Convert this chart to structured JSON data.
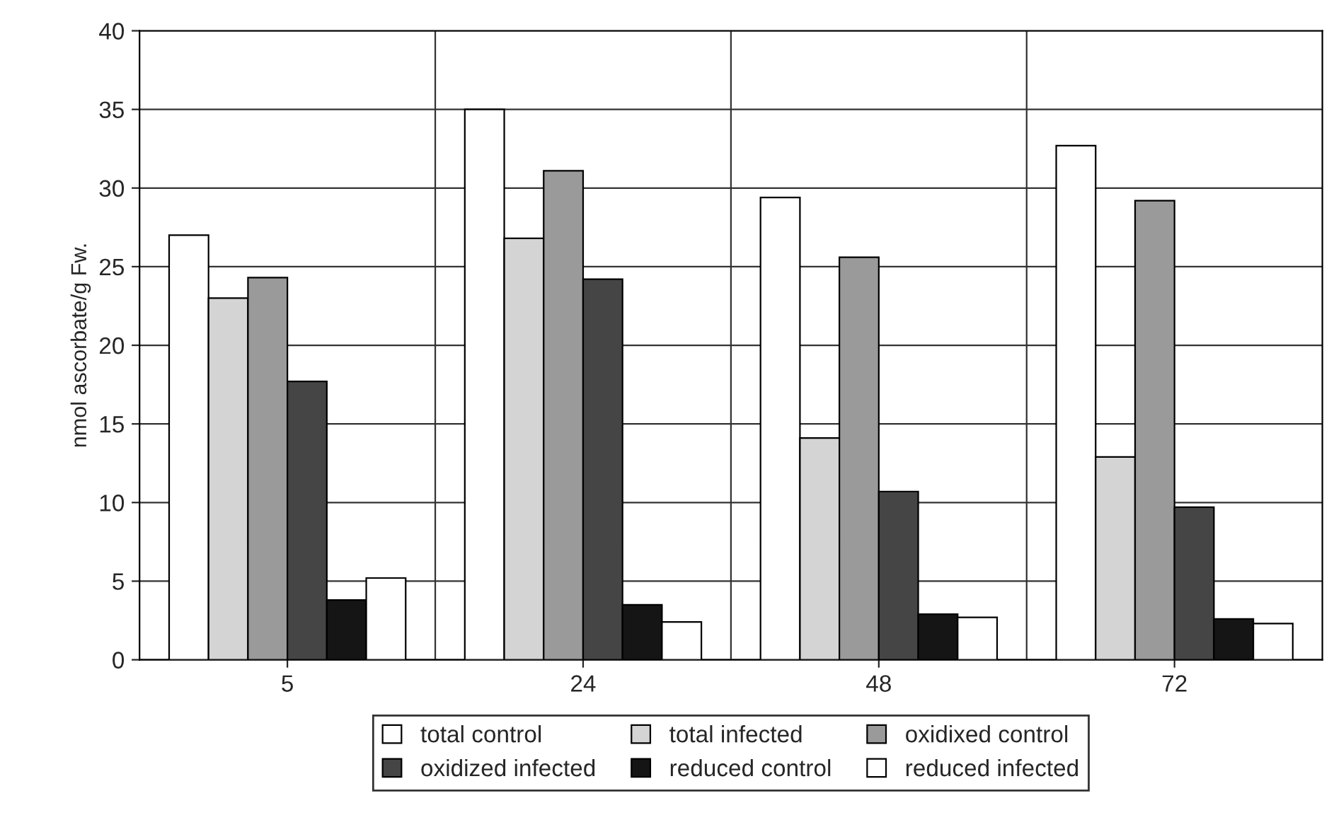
{
  "chart_data": {
    "type": "bar",
    "ylabel": "nmol ascorbate/g Fw.",
    "categories": [
      "5",
      "24",
      "48",
      "72"
    ],
    "series": [
      {
        "name": "total control",
        "color": "#ffffff",
        "values": [
          27.0,
          35.0,
          29.4,
          32.7
        ]
      },
      {
        "name": "total infected",
        "color": "#d4d4d4",
        "values": [
          23.0,
          26.8,
          14.1,
          12.9
        ]
      },
      {
        "name": "oxidixed control",
        "color": "#9a9a9a",
        "values": [
          24.3,
          31.1,
          25.6,
          29.2
        ]
      },
      {
        "name": "oxidized infected",
        "color": "#454545",
        "values": [
          17.7,
          24.2,
          10.7,
          9.7
        ]
      },
      {
        "name": "reduced control",
        "color": "#151515",
        "values": [
          3.8,
          3.5,
          2.9,
          2.6
        ]
      },
      {
        "name": "reduced infected",
        "color": "#ffffff",
        "values": [
          5.2,
          2.4,
          2.7,
          2.3
        ]
      }
    ],
    "ylim": [
      0,
      40
    ],
    "yticks": [
      0,
      5,
      10,
      15,
      20,
      25,
      30,
      35,
      40
    ],
    "grid": true,
    "legend": "bottom"
  }
}
